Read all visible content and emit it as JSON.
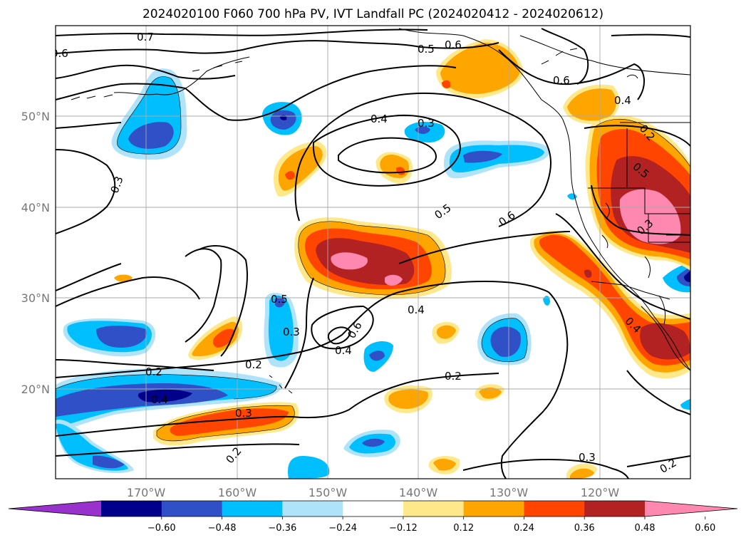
{
  "title": "2024020100 F060 700 hPa PV, IVT Landfall PC (2024020412 - 2024020612)",
  "lat_labels": [
    "50°N",
    "40°N",
    "30°N",
    "20°N"
  ],
  "lon_labels": [
    "170°W",
    "160°W",
    "150°W",
    "140°W",
    "130°W",
    "120°W"
  ],
  "colorbar": {
    "ticks": [
      "−0.60",
      "−0.48",
      "−0.36",
      "−0.24",
      "−0.12",
      "0.12",
      "0.24",
      "0.36",
      "0.48",
      "0.60"
    ],
    "colors": [
      "#9932cc",
      "#00008b",
      "#3050c8",
      "#00bfff",
      "#aee3fa",
      "#ffffff",
      "#ffe88a",
      "#ffa500",
      "#ff4500",
      "#b22222",
      "#ff88b0"
    ]
  },
  "contour_labels": {
    "c1": "0.7",
    "c2": "0.6",
    "c3": "0.5",
    "c4": "0.6",
    "c5": "0.4",
    "c6": "0.3",
    "c7": "0.4",
    "c8": "0.3",
    "c9": "0.5",
    "c10": "0.6",
    "c11": "0.5",
    "c12": "0.3",
    "c13": "0.5",
    "c14": "0.6",
    "c15": "0.4",
    "c16": "0.3",
    "c17": "0.2",
    "c18": "0.4",
    "c19": "0.2",
    "c20": "0.2",
    "c21": "0.3",
    "c22": "0.2",
    "c23": "0.4",
    "c24": "0.4",
    "c25": "0.3",
    "c26": "0.2",
    "c27": "0.2",
    "c28": "0.6"
  }
}
